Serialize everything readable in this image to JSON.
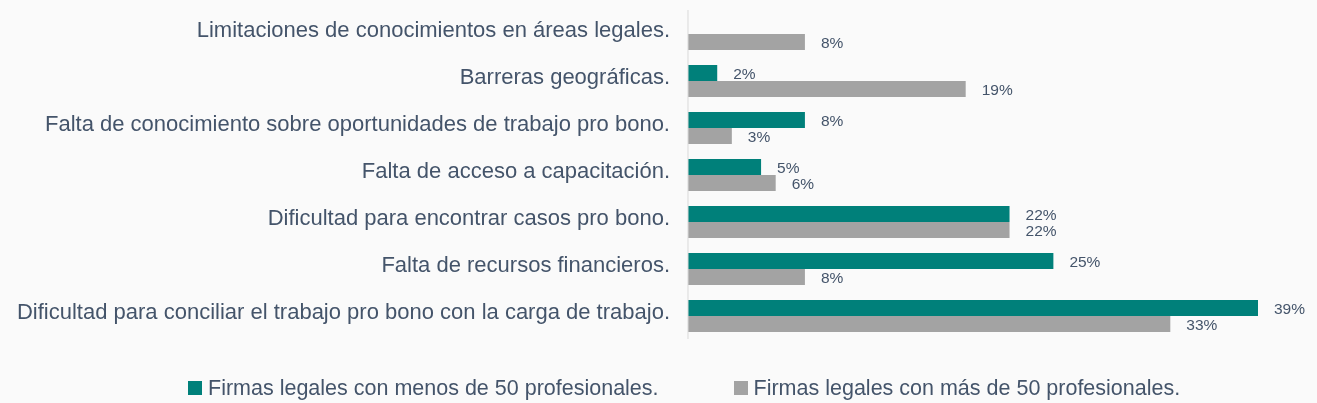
{
  "chart_data": {
    "type": "bar",
    "orientation": "horizontal",
    "categories": [
      "Limitaciones de conocimientos en áreas legales.",
      "Barreras geográficas.",
      "Falta de conocimiento sobre oportunidades de trabajo pro bono.",
      "Falta de acceso a capacitación.",
      "Dificultad para encontrar casos pro bono.",
      "Falta de recursos financieros.",
      "Dificultad para conciliar el trabajo pro bono con la carga de trabajo."
    ],
    "series": [
      {
        "name": "Firmas legales con menos de 50 profesionales.",
        "color": "#00807a",
        "values": [
          null,
          2,
          8,
          5,
          22,
          25,
          39
        ],
        "value_labels": [
          null,
          "2%",
          "8%",
          "5%",
          "22%",
          "25%",
          "39%"
        ]
      },
      {
        "name": "Firmas legales con más de 50 profesionales.",
        "color": "#a3a3a3",
        "values": [
          8,
          19,
          3,
          6,
          22,
          8,
          33
        ],
        "value_labels": [
          "8%",
          "19%",
          "3%",
          "6%",
          "22%",
          "8%",
          "33%"
        ]
      }
    ],
    "legend": "bottom"
  }
}
